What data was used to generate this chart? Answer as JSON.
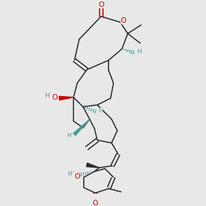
{
  "bg_color": "#e8e8e8",
  "bond_color": "#2d2d2d",
  "oxygen_color": "#cc0000",
  "stereo_color": "#4a9a9a",
  "figsize": [
    3.0,
    3.0
  ],
  "dpi": 100,
  "xlim": [
    0.15,
    0.85
  ],
  "ylim": [
    0.01,
    1.01
  ]
}
